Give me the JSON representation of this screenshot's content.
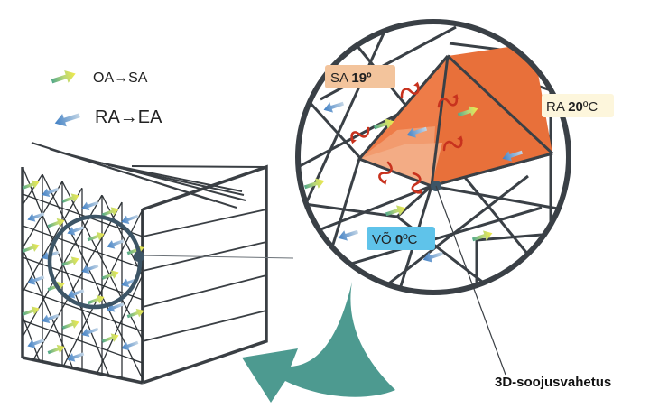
{
  "legend": {
    "oa_sa": "OA→SA",
    "ra_ea": "RA→EA"
  },
  "zoom_labels": {
    "sa_prefix": "SA ",
    "sa_value": "19º",
    "ra_prefix": "RA ",
    "ra_value": "20",
    "ra_unit": "ºC",
    "vo_prefix": "VÕ ",
    "vo_value": "0",
    "vo_unit": "ºC"
  },
  "callout": "3D-soojusvahetus",
  "colors": {
    "frame": "#3a3f44",
    "hex_orange": "#e8703a",
    "hex_orange_light": "#f0a37a",
    "heat_arrow": "#c8321e",
    "teal_arrow": "#4d9a90",
    "sa_box": "#f3c49c",
    "ra_box": "#fdf6dc",
    "vo_box": "#5fc3ea",
    "supply_arrow_start": "#52a88a",
    "supply_arrow_end": "#f2ea4a",
    "exhaust_arrow_start": "#c4d6e6",
    "exhaust_arrow_end": "#3f7fc4"
  },
  "icons": {
    "supply_arrow": "gradient-arrow-green-yellow",
    "exhaust_arrow": "gradient-arrow-blue",
    "heat_transfer": "curved-red-arrow",
    "big_arrow": "curved-teal-arrow"
  }
}
